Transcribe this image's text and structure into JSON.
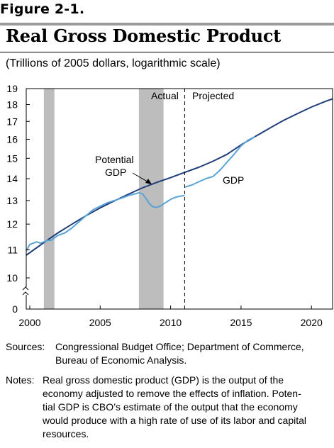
{
  "figure_label": "Figure 2-1.",
  "title": "Real Gross Domestic Product",
  "subtitle": "(Trillions of 2005 dollars, logarithmic scale)",
  "sources": {
    "label": "Sources:",
    "line1": "Congressional Budget Office; Department of Commerce,",
    "line2": "Bureau of Economic Analysis."
  },
  "notes": {
    "label": "Notes:",
    "line1": "Real gross domestic product (GDP) is the output of the",
    "line2": "economy adjusted to remove the effects of inflation. Poten-",
    "line3": "tial GDP is CBO’s estimate of the output that the economy",
    "line4": "would produce with a high rate of use of its labor and capital",
    "line5": "resources."
  },
  "colors": {
    "potential": "#1f3e7a",
    "gdp": "#5aa3d6",
    "recession": "#bdbdbd",
    "axis": "#000000"
  },
  "chart_data": {
    "type": "line",
    "yscale": "log",
    "ylabel": "",
    "xlabel": "",
    "xlim": [
      1999.75,
      2021.5
    ],
    "ylim": [
      10,
      19
    ],
    "axis_break_zero": "0",
    "x_ticks": [
      2000,
      2005,
      2010,
      2015,
      2020
    ],
    "y_ticks": [
      10,
      11,
      12,
      13,
      14,
      15,
      16,
      17,
      18,
      19
    ],
    "recessions": [
      [
        2001.0,
        2001.75
      ],
      [
        2007.75,
        2009.5
      ]
    ],
    "divider_x": 2011.0,
    "annotations": {
      "actual": "Actual",
      "projected": "Projected",
      "potential_line1": "Potential",
      "potential_line2": "GDP",
      "gdp": "GDP"
    },
    "series": [
      {
        "name": "Potential GDP",
        "x": [
          1999.75,
          2001,
          2002,
          2003,
          2004,
          2005,
          2006,
          2007,
          2008,
          2009,
          2010,
          2011,
          2012,
          2013,
          2014,
          2015,
          2016,
          2017,
          2018,
          2019,
          2020,
          2021,
          2021.5
        ],
        "y": [
          10.8,
          11.27,
          11.65,
          12.0,
          12.35,
          12.68,
          12.98,
          13.28,
          13.57,
          13.82,
          14.05,
          14.3,
          14.55,
          14.85,
          15.2,
          15.7,
          16.15,
          16.6,
          17.05,
          17.45,
          17.85,
          18.2,
          18.35
        ]
      },
      {
        "name": "GDP",
        "segments": [
          {
            "x": [
              1999.75,
              2000,
              2000.25,
              2000.5,
              2000.75,
              2001,
              2001.25,
              2001.5,
              2001.75,
              2002,
              2002.5,
              2003,
              2003.5,
              2004,
              2004.5,
              2005,
              2005.5,
              2006,
              2006.5,
              2007,
              2007.5,
              2007.75,
              2008,
              2008.25,
              2008.5,
              2008.75,
              2009,
              2009.25,
              2009.5,
              2009.75,
              2010,
              2010.25,
              2010.5,
              2010.75,
              2011
            ],
            "y": [
              10.95,
              11.2,
              11.25,
              11.3,
              11.25,
              11.3,
              11.35,
              11.35,
              11.45,
              11.55,
              11.65,
              11.85,
              12.1,
              12.35,
              12.6,
              12.75,
              12.9,
              13.0,
              13.1,
              13.22,
              13.3,
              13.35,
              13.3,
              13.1,
              12.85,
              12.72,
              12.7,
              12.75,
              12.85,
              12.95,
              13.05,
              13.12,
              13.17,
              13.2,
              13.22
            ]
          },
          {
            "x": [
              2011.0,
              2011.5,
              2012,
              2012.5,
              2013,
              2013.5,
              2014,
              2014.5,
              2015,
              2015.5,
              2016
            ],
            "y": [
              13.6,
              13.7,
              13.85,
              14.0,
              14.1,
              14.4,
              14.8,
              15.2,
              15.65,
              15.95,
              16.15
            ]
          }
        ]
      }
    ]
  }
}
